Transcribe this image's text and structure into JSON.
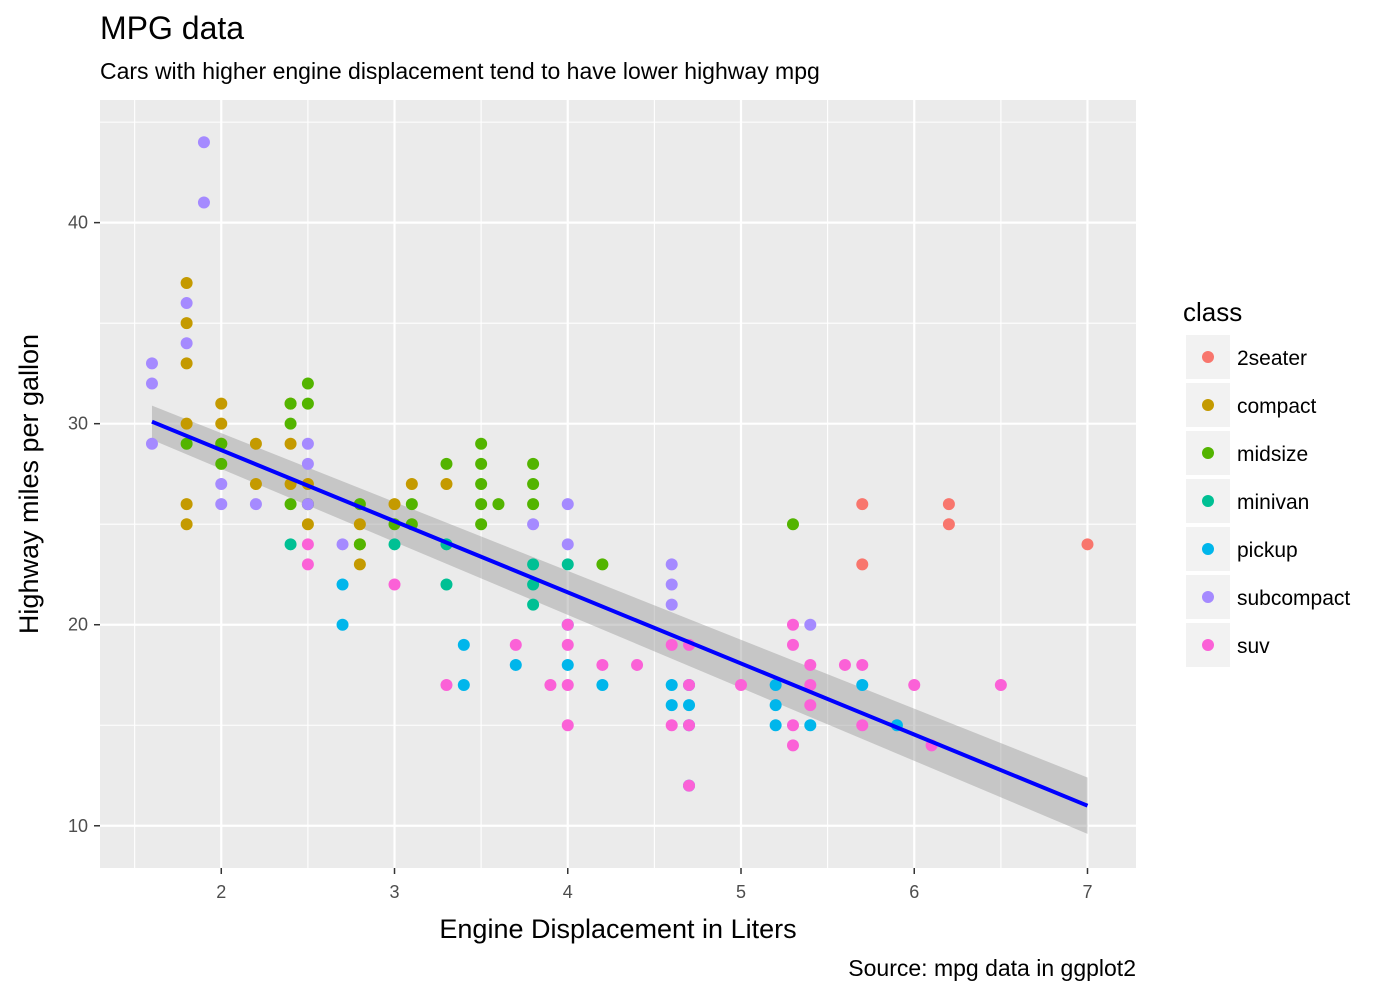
{
  "chart_data": {
    "type": "scatter",
    "title": "MPG data",
    "subtitle": "Cars with higher engine displacement tend to have lower highway mpg",
    "caption": "Source: mpg data in ggplot2",
    "xlabel": "Engine Displacement in Liters",
    "ylabel": "Highway miles per gallon",
    "xlim": [
      1.3,
      7.28
    ],
    "ylim": [
      7.9,
      46.1
    ],
    "x_ticks": [
      2,
      3,
      4,
      5,
      6,
      7
    ],
    "y_ticks": [
      10,
      20,
      30,
      40
    ],
    "grid": true,
    "legend": {
      "title": "class",
      "position": "right"
    },
    "series": [
      {
        "name": "2seater",
        "color": "#F8766D",
        "points": [
          [
            5.7,
            26
          ],
          [
            5.7,
            23
          ],
          [
            6.2,
            26
          ],
          [
            6.2,
            25
          ],
          [
            7.0,
            24
          ]
        ]
      },
      {
        "name": "compact",
        "color": "#C49A00",
        "points": [
          [
            1.8,
            37
          ],
          [
            1.8,
            35
          ],
          [
            1.8,
            33
          ],
          [
            1.8,
            30
          ],
          [
            1.8,
            26
          ],
          [
            1.8,
            25
          ],
          [
            2.0,
            31
          ],
          [
            2.0,
            30
          ],
          [
            2.0,
            29
          ],
          [
            2.2,
            29
          ],
          [
            2.2,
            27
          ],
          [
            2.4,
            31
          ],
          [
            2.4,
            29
          ],
          [
            2.4,
            27
          ],
          [
            2.5,
            27
          ],
          [
            2.5,
            26
          ],
          [
            2.5,
            25
          ],
          [
            2.8,
            25
          ],
          [
            2.8,
            24
          ],
          [
            2.8,
            23
          ],
          [
            3.0,
            26
          ],
          [
            3.1,
            27
          ],
          [
            3.3,
            27
          ]
        ]
      },
      {
        "name": "midsize",
        "color": "#53B400",
        "points": [
          [
            1.8,
            29
          ],
          [
            2.0,
            29
          ],
          [
            2.0,
            28
          ],
          [
            2.4,
            31
          ],
          [
            2.4,
            30
          ],
          [
            2.4,
            26
          ],
          [
            2.5,
            32
          ],
          [
            2.5,
            31
          ],
          [
            2.5,
            26
          ],
          [
            2.8,
            26
          ],
          [
            2.8,
            24
          ],
          [
            3.0,
            25
          ],
          [
            3.1,
            26
          ],
          [
            3.1,
            25
          ],
          [
            3.3,
            28
          ],
          [
            3.5,
            29
          ],
          [
            3.5,
            28
          ],
          [
            3.5,
            27
          ],
          [
            3.5,
            26
          ],
          [
            3.5,
            25
          ],
          [
            3.6,
            26
          ],
          [
            3.8,
            28
          ],
          [
            3.8,
            27
          ],
          [
            3.8,
            26
          ],
          [
            4.2,
            23
          ],
          [
            5.3,
            25
          ]
        ]
      },
      {
        "name": "minivan",
        "color": "#00C094",
        "points": [
          [
            2.4,
            24
          ],
          [
            3.0,
            24
          ],
          [
            3.3,
            24
          ],
          [
            3.3,
            22
          ],
          [
            3.8,
            23
          ],
          [
            3.8,
            22
          ],
          [
            3.8,
            21
          ],
          [
            4.0,
            23
          ]
        ]
      },
      {
        "name": "pickup",
        "color": "#00B6EB",
        "points": [
          [
            2.7,
            22
          ],
          [
            2.7,
            20
          ],
          [
            3.4,
            19
          ],
          [
            3.4,
            17
          ],
          [
            3.7,
            18
          ],
          [
            4.0,
            20
          ],
          [
            4.0,
            18
          ],
          [
            4.2,
            17
          ],
          [
            4.6,
            17
          ],
          [
            4.6,
            16
          ],
          [
            4.7,
            17
          ],
          [
            4.7,
            16
          ],
          [
            4.7,
            15
          ],
          [
            4.7,
            12
          ],
          [
            5.2,
            17
          ],
          [
            5.2,
            16
          ],
          [
            5.2,
            15
          ],
          [
            5.4,
            15
          ],
          [
            5.7,
            17
          ],
          [
            5.9,
            15
          ]
        ]
      },
      {
        "name": "subcompact",
        "color": "#A58AFF",
        "points": [
          [
            1.6,
            33
          ],
          [
            1.6,
            32
          ],
          [
            1.6,
            29
          ],
          [
            1.8,
            36
          ],
          [
            1.8,
            34
          ],
          [
            1.9,
            44
          ],
          [
            1.9,
            41
          ],
          [
            2.0,
            27
          ],
          [
            2.0,
            26
          ],
          [
            2.2,
            26
          ],
          [
            2.5,
            29
          ],
          [
            2.5,
            28
          ],
          [
            2.5,
            26
          ],
          [
            2.7,
            24
          ],
          [
            3.8,
            25
          ],
          [
            4.0,
            26
          ],
          [
            4.0,
            24
          ],
          [
            4.6,
            23
          ],
          [
            4.6,
            22
          ],
          [
            4.6,
            21
          ],
          [
            5.4,
            20
          ]
        ]
      },
      {
        "name": "suv",
        "color": "#FB61D7",
        "points": [
          [
            2.5,
            24
          ],
          [
            2.5,
            23
          ],
          [
            3.0,
            22
          ],
          [
            3.3,
            17
          ],
          [
            3.7,
            19
          ],
          [
            3.9,
            17
          ],
          [
            4.0,
            20
          ],
          [
            4.0,
            19
          ],
          [
            4.0,
            17
          ],
          [
            4.0,
            15
          ],
          [
            4.2,
            18
          ],
          [
            4.4,
            18
          ],
          [
            4.6,
            19
          ],
          [
            4.6,
            15
          ],
          [
            4.7,
            19
          ],
          [
            4.7,
            17
          ],
          [
            4.7,
            15
          ],
          [
            4.7,
            12
          ],
          [
            5.0,
            17
          ],
          [
            5.3,
            20
          ],
          [
            5.3,
            19
          ],
          [
            5.3,
            15
          ],
          [
            5.3,
            14
          ],
          [
            5.4,
            18
          ],
          [
            5.4,
            17
          ],
          [
            5.4,
            16
          ],
          [
            5.6,
            18
          ],
          [
            5.7,
            18
          ],
          [
            5.7,
            15
          ],
          [
            6.0,
            17
          ],
          [
            6.1,
            14
          ],
          [
            6.5,
            17
          ]
        ]
      }
    ],
    "trend_line": {
      "color": "#0000FF",
      "band_color": "#999999",
      "x_start": 1.6,
      "y_start": 30.1,
      "x_end": 7.0,
      "y_end": 11.0,
      "ci_start": [
        29.2,
        30.9
      ],
      "ci_end": [
        9.6,
        12.4
      ]
    }
  }
}
